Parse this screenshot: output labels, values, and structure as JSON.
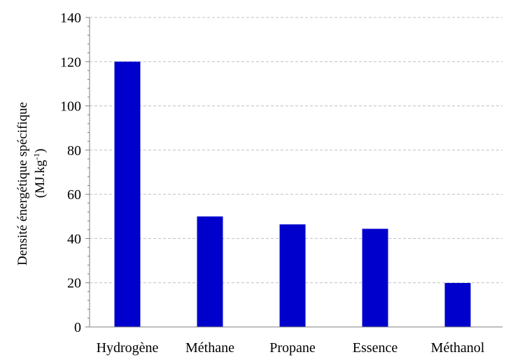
{
  "chart_data": {
    "type": "bar",
    "title": "",
    "xlabel": "",
    "ylabel": {
      "line1": "Densité énergétique spécifique",
      "line2_prefix": "(MJ.kg",
      "line2_superscript": "-1",
      "line2_suffix": ")"
    },
    "categories": [
      "Hydrogène",
      "Méthane",
      "Propane",
      "Essence",
      "Méthanol"
    ],
    "values": [
      120,
      50,
      46.4,
      44.4,
      19.9
    ],
    "ylim": [
      0,
      140
    ],
    "yticks": [
      0,
      20,
      40,
      60,
      80,
      100,
      120,
      140
    ],
    "ytick_labels": [
      "0",
      "20",
      "40",
      "60",
      "80",
      "100",
      "120",
      "140"
    ],
    "grid": true,
    "legend": "none",
    "colors": {
      "bar": "#0000CC",
      "grid": "#BFBFBF",
      "axis": "#7F7F7F",
      "text": "#000000"
    }
  }
}
